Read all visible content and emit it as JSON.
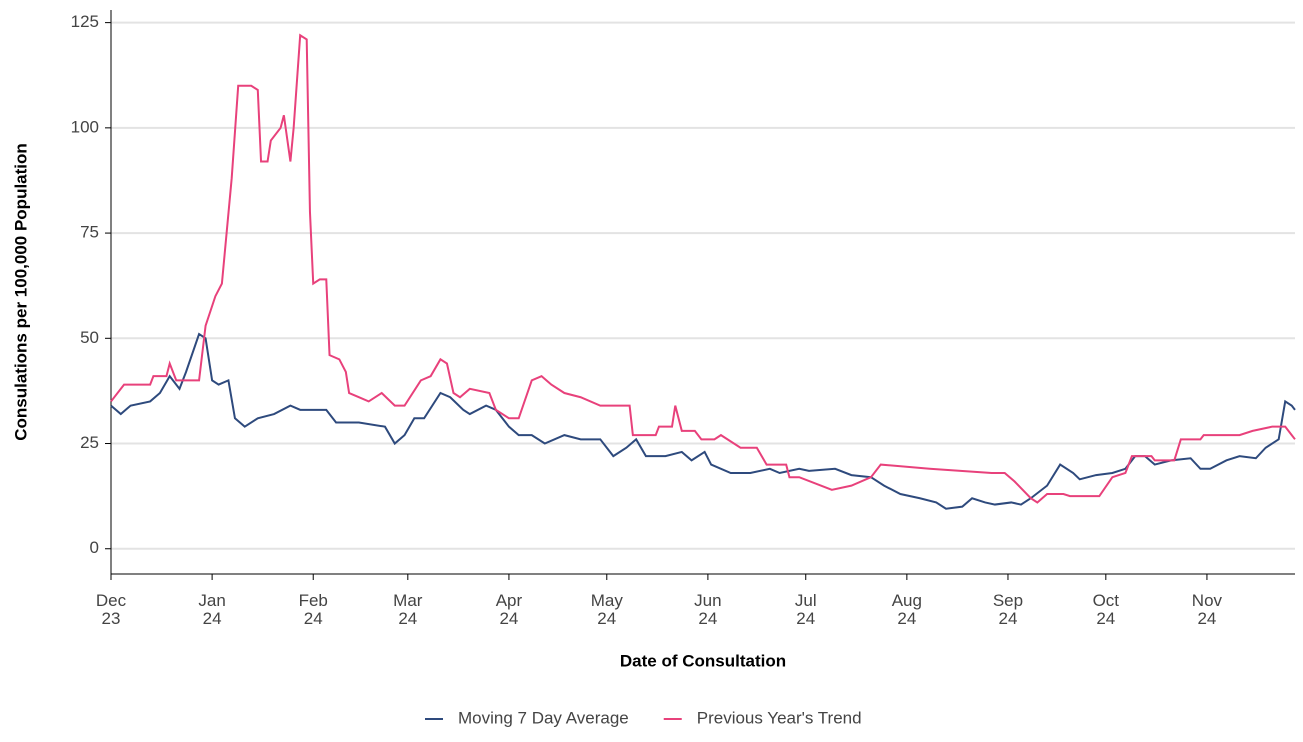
{
  "chart_data": {
    "type": "line",
    "x_label": "Date of Consultation",
    "y_label": "Consulations per 100,000 Population",
    "xlim": [
      0,
      363
    ],
    "xticks": [
      {
        "value": 0,
        "label": "Dec 23"
      },
      {
        "value": 31,
        "label": "Jan 24"
      },
      {
        "value": 62,
        "label": "Feb 24"
      },
      {
        "value": 91,
        "label": "Mar 24"
      },
      {
        "value": 122,
        "label": "Apr 24"
      },
      {
        "value": 152,
        "label": "May 24"
      },
      {
        "value": 183,
        "label": "Jun 24"
      },
      {
        "value": 213,
        "label": "Jul 24"
      },
      {
        "value": 244,
        "label": "Aug 24"
      },
      {
        "value": 275,
        "label": "Sep 24"
      },
      {
        "value": 305,
        "label": "Oct 24"
      },
      {
        "value": 336,
        "label": "Nov 24"
      }
    ],
    "ylim": [
      -6,
      128
    ],
    "yticks": [
      0,
      25,
      50,
      75,
      100,
      125
    ],
    "grid": true,
    "legend": "bottom",
    "series": [
      {
        "name": "Moving 7 Day Average",
        "color": "#2e4a7d",
        "x": [
          0,
          3,
          6,
          12,
          15,
          18,
          21,
          23,
          27,
          29,
          31,
          33,
          36,
          38,
          41,
          45,
          50,
          55,
          58,
          61,
          66,
          69,
          76,
          84,
          87,
          90,
          93,
          96,
          101,
          104,
          108,
          110,
          115,
          118,
          122,
          125,
          129,
          133,
          139,
          144,
          150,
          154,
          158,
          161,
          164,
          170,
          175,
          178,
          182,
          184,
          190,
          196,
          202,
          205,
          211,
          214,
          222,
          227,
          233,
          237,
          242,
          248,
          253,
          256,
          261,
          264,
          268,
          271,
          276,
          279,
          282,
          287,
          291,
          295,
          297,
          302,
          307,
          311,
          314,
          317,
          320,
          325,
          331,
          334,
          337,
          342,
          346,
          351,
          354,
          358,
          360,
          362,
          363
        ],
        "values": [
          34,
          32,
          34,
          35,
          37,
          41,
          38,
          42,
          51,
          50,
          40,
          39,
          40,
          31,
          29,
          31,
          32,
          34,
          33,
          33,
          33,
          30,
          30,
          29,
          25,
          27,
          31,
          31,
          37,
          36,
          33,
          32,
          34,
          33,
          29,
          27,
          27,
          25,
          27,
          26,
          26,
          22,
          24,
          26,
          22,
          22,
          23,
          21,
          23,
          20,
          18,
          18,
          19,
          18,
          19,
          18.5,
          19,
          17.5,
          17,
          15,
          13,
          12,
          11,
          9.5,
          10,
          12,
          11,
          10.5,
          11,
          10.5,
          12,
          15,
          20,
          18,
          16.5,
          17.5,
          18,
          19,
          22,
          22,
          20,
          21,
          21.5,
          19,
          19,
          21,
          22,
          21.5,
          24,
          26,
          35,
          34,
          33
        ]
      },
      {
        "name": "Previous Year's Trend",
        "color": "#e8417b",
        "x": [
          0,
          4,
          12,
          13,
          17,
          18,
          20,
          27,
          29,
          32,
          34,
          37,
          39,
          43,
          45,
          46,
          48,
          49,
          52,
          53,
          55,
          56,
          58,
          60,
          61,
          62,
          64,
          66,
          67,
          70,
          72,
          73,
          76,
          79,
          83,
          87,
          90,
          95,
          98,
          101,
          103,
          105,
          107,
          110,
          116,
          118,
          122,
          125,
          129,
          132,
          135,
          139,
          144,
          150,
          159,
          160,
          167,
          168,
          172,
          173,
          175,
          179,
          181,
          185,
          187,
          193,
          198,
          201,
          207,
          208,
          211,
          221,
          227,
          233,
          236,
          251,
          270,
          274,
          277,
          282,
          284,
          287,
          292,
          294,
          303,
          307,
          311,
          313,
          319,
          320,
          326,
          328,
          334,
          335,
          346,
          350,
          356,
          360,
          362,
          363
        ],
        "values": [
          35,
          39,
          39,
          41,
          41,
          44,
          40,
          40,
          53,
          60,
          63,
          88,
          110,
          110,
          109,
          92,
          92,
          97,
          100,
          103,
          92,
          100,
          122,
          121,
          80,
          63,
          64,
          64,
          46,
          45,
          42,
          37,
          36,
          35,
          37,
          34,
          34,
          40,
          41,
          45,
          44,
          37,
          36,
          38,
          37,
          33,
          31,
          31,
          40,
          41,
          39,
          37,
          36,
          34,
          34,
          27,
          27,
          29,
          29,
          34,
          28,
          28,
          26,
          26,
          27,
          24,
          24,
          20,
          20,
          17,
          17,
          14,
          15,
          17,
          20,
          19,
          18,
          18,
          16,
          12,
          11,
          13,
          13,
          12.5,
          12.5,
          17,
          18,
          22,
          22,
          21,
          21,
          26,
          26,
          27,
          27,
          28,
          29,
          29,
          27,
          26
        ]
      }
    ]
  }
}
